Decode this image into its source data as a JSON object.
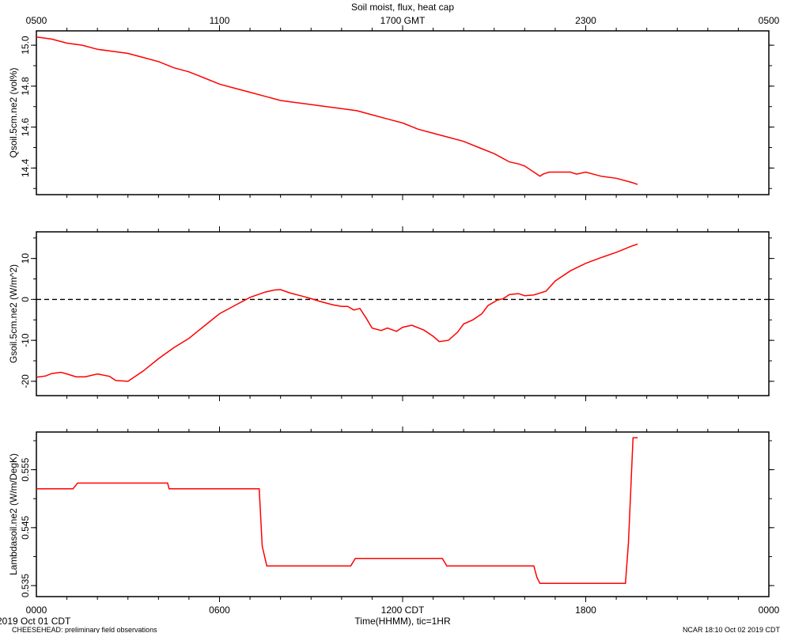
{
  "title": "Soil moist, flux, heat cap",
  "top_axis": {
    "ticks": [
      "0500",
      "1100",
      "1700 GMT",
      "2300",
      "0500"
    ]
  },
  "bottom_axis": {
    "ticks": [
      "0000",
      "0600",
      "1200 CDT",
      "1800",
      "0000"
    ],
    "label": "Time(HHMM), tic=1HR"
  },
  "footer": {
    "date_label": "2019 Oct 01 CDT",
    "project": "CHEESEHEAD: preliminary field observations",
    "stamp": "NCAR 18:10 Oct 02 2019 CDT"
  },
  "colors": {
    "series": "#ff0000",
    "axes": "#000000"
  },
  "chart_data": [
    {
      "type": "line",
      "ylabel": "Qsoil.5cm.ne2 (vol%)",
      "x_unit": "hours since 0000 CDT",
      "xlim": [
        0,
        24
      ],
      "ylim": [
        14.27,
        15.07
      ],
      "yticks": [
        14.4,
        14.6,
        14.8,
        15.0
      ],
      "ytick_labels": [
        "14.4",
        "14.6",
        "14.8",
        "15.0"
      ],
      "x": [
        0,
        0.5,
        1.0,
        1.5,
        2.0,
        2.5,
        3.0,
        3.5,
        4.0,
        4.5,
        5.0,
        5.5,
        6.0,
        6.5,
        7.0,
        7.5,
        8.0,
        8.5,
        9.0,
        9.5,
        10.0,
        10.5,
        11.0,
        11.5,
        12.0,
        12.5,
        13.0,
        13.5,
        14.0,
        14.5,
        15.0,
        15.5,
        15.8,
        16.0,
        16.4,
        16.5,
        16.6,
        16.8,
        17.5,
        17.7,
        18.0,
        18.5,
        19.0,
        19.5,
        19.7
      ],
      "y": [
        15.04,
        15.03,
        15.01,
        15.0,
        14.98,
        14.97,
        14.96,
        14.94,
        14.92,
        14.89,
        14.87,
        14.84,
        14.81,
        14.79,
        14.77,
        14.75,
        14.73,
        14.72,
        14.71,
        14.7,
        14.69,
        14.68,
        14.66,
        14.64,
        14.62,
        14.59,
        14.57,
        14.55,
        14.53,
        14.5,
        14.47,
        14.43,
        14.42,
        14.41,
        14.37,
        14.36,
        14.37,
        14.38,
        14.38,
        14.37,
        14.38,
        14.36,
        14.35,
        14.33,
        14.32
      ],
      "reference_line": null
    },
    {
      "type": "line",
      "ylabel": "Gsoil.5cm.ne2 (W/m^2)",
      "x_unit": "hours since 0000 CDT",
      "xlim": [
        0,
        24
      ],
      "ylim": [
        -23.5,
        16.5
      ],
      "yticks": [
        -20,
        -10,
        0,
        10
      ],
      "ytick_labels": [
        "-20",
        "-10",
        "0",
        "10"
      ],
      "x": [
        0,
        0.3,
        0.5,
        0.8,
        1.0,
        1.3,
        1.6,
        2.0,
        2.4,
        2.6,
        3.0,
        3.5,
        4.0,
        4.5,
        5.0,
        5.5,
        6.0,
        6.5,
        7.0,
        7.5,
        7.8,
        8.0,
        8.3,
        8.7,
        9.0,
        9.3,
        9.7,
        10.0,
        10.2,
        10.4,
        10.6,
        10.8,
        11.0,
        11.3,
        11.5,
        11.8,
        12.0,
        12.3,
        12.7,
        13.0,
        13.2,
        13.5,
        13.8,
        14.0,
        14.3,
        14.6,
        14.8,
        15.1,
        15.3,
        15.5,
        15.8,
        16.0,
        16.3,
        16.7,
        17.0,
        17.5,
        18.0,
        18.5,
        19.0,
        19.5,
        19.7
      ],
      "y": [
        -19.0,
        -18.7,
        -18.1,
        -17.8,
        -18.2,
        -18.9,
        -18.9,
        -18.2,
        -18.8,
        -19.8,
        -20.0,
        -17.5,
        -14.5,
        -11.8,
        -9.5,
        -6.5,
        -3.5,
        -1.5,
        0.5,
        1.8,
        2.3,
        2.4,
        1.6,
        0.8,
        0.2,
        -0.5,
        -1.3,
        -1.7,
        -1.7,
        -2.6,
        -2.2,
        -4.5,
        -7.0,
        -7.6,
        -7.0,
        -7.8,
        -6.8,
        -6.3,
        -7.5,
        -9.0,
        -10.3,
        -10.0,
        -8.0,
        -6.0,
        -5.0,
        -3.5,
        -1.5,
        -0.2,
        0.2,
        1.2,
        1.4,
        0.9,
        1.1,
        2.0,
        4.5,
        7.0,
        8.8,
        10.2,
        11.5,
        13.0,
        13.5
      ],
      "reference_line": 0
    },
    {
      "type": "line",
      "ylabel": "Lambdasoil.ne2 (W/m/DegK)",
      "x_unit": "hours since 0000 CDT",
      "xlim": [
        0,
        24
      ],
      "ylim": [
        0.5331,
        0.5615
      ],
      "yticks": [
        0.535,
        0.545,
        0.555
      ],
      "ytick_labels": [
        "0.535",
        "0.545",
        "0.555"
      ],
      "x": [
        0,
        1.2,
        1.35,
        4.3,
        4.35,
        7.3,
        7.4,
        7.55,
        10.3,
        10.45,
        13.3,
        13.45,
        16.3,
        16.4,
        16.5,
        19.3,
        19.4,
        19.55,
        19.7
      ],
      "y": [
        0.5517,
        0.5517,
        0.5527,
        0.5527,
        0.5517,
        0.5517,
        0.5418,
        0.5384,
        0.5384,
        0.5397,
        0.5397,
        0.5384,
        0.5384,
        0.5364,
        0.5354,
        0.5354,
        0.5424,
        0.5605,
        0.5605
      ],
      "reference_line": null
    }
  ]
}
